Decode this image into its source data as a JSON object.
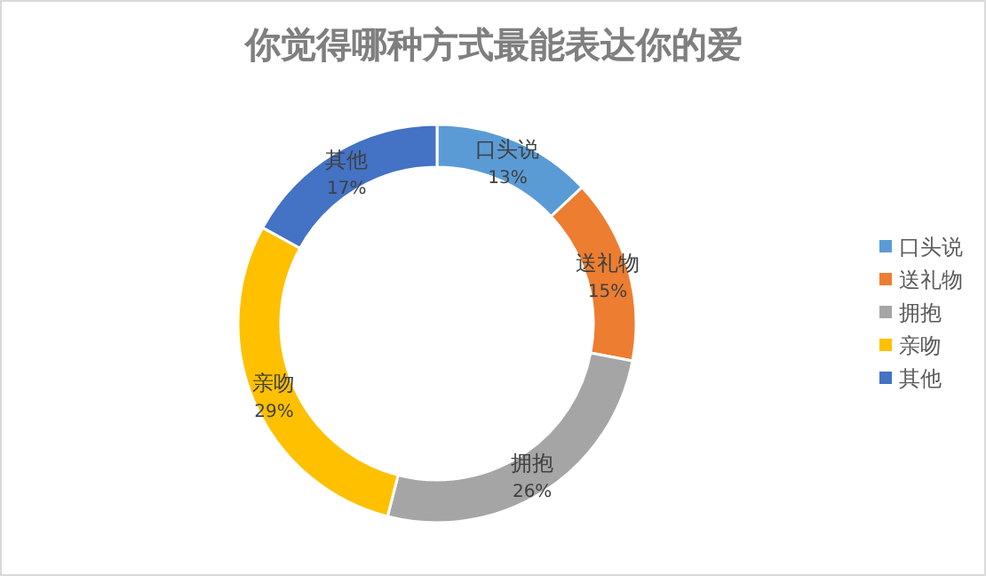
{
  "chart_data": {
    "type": "donut",
    "title": "你觉得哪种方式最能表达你的爱",
    "categories": [
      "口头说",
      "送礼物",
      "拥抱",
      "亲吻",
      "其他"
    ],
    "values": [
      13,
      15,
      26,
      29,
      17
    ],
    "colors": [
      "#5b9bd5",
      "#ed7d31",
      "#a5a5a5",
      "#ffc000",
      "#4472c4"
    ],
    "value_labels": [
      "13%",
      "15%",
      "26%",
      "29%",
      "17%"
    ],
    "legend": "right"
  }
}
